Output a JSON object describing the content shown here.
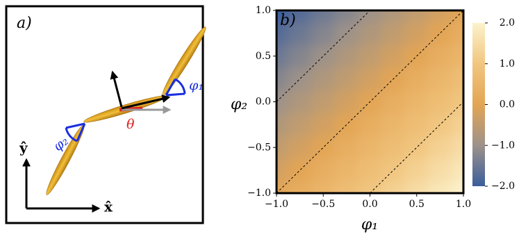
{
  "panel_a": {
    "label": "a)",
    "phi1": "φ₁",
    "phi2": "φ₂",
    "theta": "θ",
    "x_hat": "x̂",
    "y_hat": "ŷ"
  },
  "chart_data": {
    "type": "heatmap",
    "panel_label": "b)",
    "x_label": "φ₁",
    "y_label": "φ₂",
    "x": [
      -1,
      -0.75,
      -0.5,
      -0.25,
      0,
      0.25,
      0.5,
      0.75,
      1
    ],
    "y": [
      -1,
      -0.75,
      -0.5,
      -0.25,
      0,
      0.25,
      0.5,
      0.75,
      1
    ],
    "z": [
      [
        0,
        0.25,
        0.5,
        0.75,
        1,
        1.25,
        1.5,
        1.75,
        2
      ],
      [
        -0.25,
        0,
        0.25,
        0.5,
        0.75,
        1,
        1.25,
        1.5,
        1.75
      ],
      [
        -0.5,
        -0.25,
        0,
        0.25,
        0.5,
        0.75,
        1,
        1.25,
        1.5
      ],
      [
        -0.75,
        -0.5,
        -0.25,
        0,
        0.25,
        0.5,
        0.75,
        1,
        1.25
      ],
      [
        -1,
        -0.75,
        -0.5,
        -0.25,
        0,
        0.25,
        0.5,
        0.75,
        1
      ],
      [
        -1.25,
        -1,
        -0.75,
        -0.5,
        -0.25,
        0,
        0.25,
        0.5,
        0.75
      ],
      [
        -1.5,
        -1.25,
        -1,
        -0.75,
        -0.5,
        -0.25,
        0,
        0.25,
        0.5
      ],
      [
        -1.75,
        -1.5,
        -1.25,
        -1,
        -0.75,
        -0.5,
        -0.25,
        0,
        0.25
      ],
      [
        -2,
        -1.75,
        -1.5,
        -1.25,
        -1,
        -0.75,
        -0.5,
        -0.25,
        0
      ]
    ],
    "contours": [
      -1,
      0,
      1
    ],
    "xlim": [
      -1,
      1
    ],
    "ylim": [
      -1,
      1
    ],
    "xticks": [
      {
        "value": -1,
        "label": "−1.0"
      },
      {
        "value": -0.5,
        "label": "−0.5"
      },
      {
        "value": 0,
        "label": "0.0"
      },
      {
        "value": 0.5,
        "label": "0.5"
      },
      {
        "value": 1,
        "label": "1.0"
      }
    ],
    "yticks": [
      {
        "value": -1,
        "label": "−1.0"
      },
      {
        "value": -0.5,
        "label": "−0.5"
      },
      {
        "value": 0,
        "label": "0.0"
      },
      {
        "value": 0.5,
        "label": "0.5"
      },
      {
        "value": 1,
        "label": "1.0"
      }
    ],
    "colorbar": {
      "lim": [
        -2,
        2
      ],
      "colors": [
        "#3a5e9c",
        "#9d9289",
        "#e3a555",
        "#f1c680",
        "#fcf2cc"
      ],
      "ticks": [
        {
          "value": -2,
          "label": "−2.0"
        },
        {
          "value": -1,
          "label": "−1.0"
        },
        {
          "value": 0,
          "label": "0.0"
        },
        {
          "value": 1,
          "label": "1.0"
        },
        {
          "value": 2,
          "label": "2.0"
        }
      ]
    }
  }
}
